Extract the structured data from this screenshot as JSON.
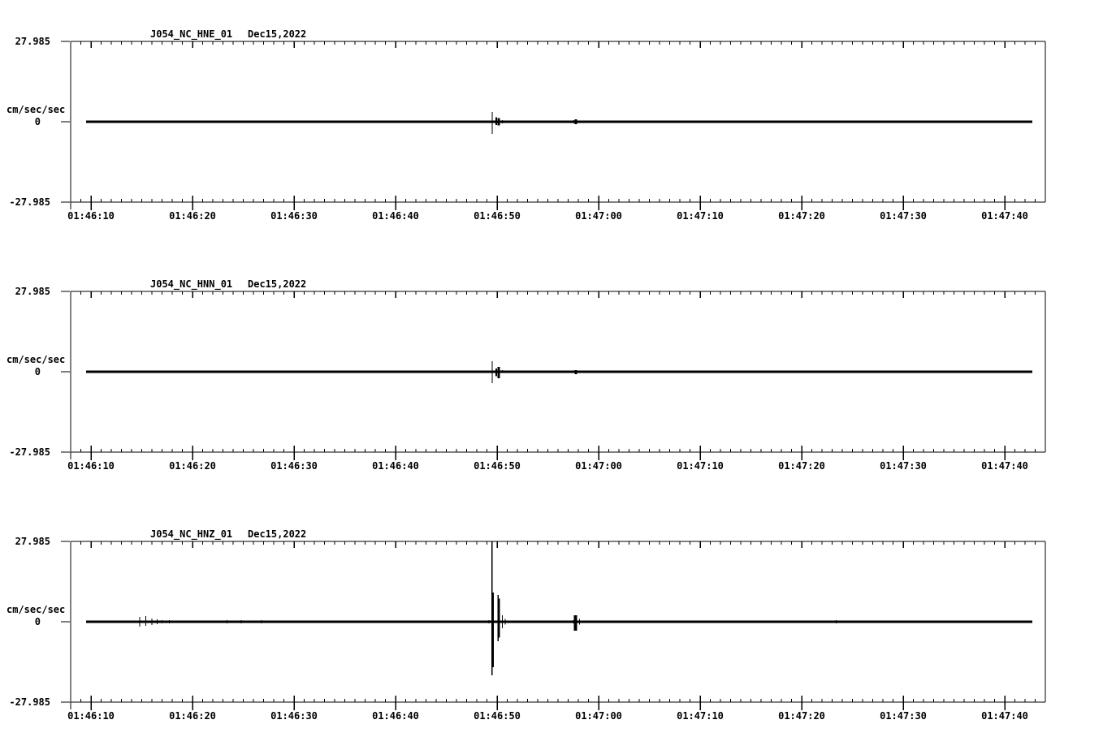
{
  "figure": {
    "background": "#ffffff",
    "ink": "#000000",
    "kind": "three-component strong-motion seismogram"
  },
  "chart_data": [
    {
      "type": "line",
      "title": "J054_NC_HNE_01",
      "date_label": "Dec15,2022",
      "ylabel": "cm/sec/sec",
      "ytick_labels": [
        "27.985",
        "0",
        "-27.985"
      ],
      "ylim": [
        -27.985,
        27.985
      ],
      "baseline_value": 0,
      "xtick_labels": [
        "01:46:10",
        "01:46:20",
        "01:46:30",
        "01:46:40",
        "01:46:50",
        "01:47:00",
        "01:47:10",
        "01:47:20",
        "01:47:30",
        "01:47:40"
      ],
      "x_window": {
        "start": "01:46:08",
        "end": "01:47:44",
        "major_tick_sec": 10,
        "minor_tick_sec": 1
      },
      "trace_span_sec": [
        -0.5,
        92.7
      ],
      "spike_fields": [
        "t_sec_after_01:46:10",
        "up_cm_s2",
        "down_cm_s2",
        "stroke_px"
      ],
      "spikes": [
        [
          4.8,
          0.4,
          0.4,
          1
        ],
        [
          5.4,
          0.4,
          0.4,
          1
        ],
        [
          35.8,
          0.3,
          0.3,
          1
        ],
        [
          39.5,
          3.4,
          4.2,
          1
        ],
        [
          39.9,
          1.6,
          1.2,
          2
        ],
        [
          40.15,
          1.3,
          1.3,
          3
        ],
        [
          40.5,
          0.5,
          0.5,
          1
        ],
        [
          46.3,
          0.3,
          0.3,
          1
        ],
        [
          47.55,
          0.5,
          0.5,
          1
        ],
        [
          47.75,
          0.8,
          0.9,
          3
        ],
        [
          48.1,
          0.3,
          0.3,
          1
        ]
      ]
    },
    {
      "type": "line",
      "title": "J054_NC_HNN_01",
      "date_label": "Dec15,2022",
      "ylabel": "cm/sec/sec",
      "ytick_labels": [
        "27.985",
        "0",
        "-27.985"
      ],
      "ylim": [
        -27.985,
        27.985
      ],
      "baseline_value": 0,
      "xtick_labels": [
        "01:46:10",
        "01:46:20",
        "01:46:30",
        "01:46:40",
        "01:46:50",
        "01:47:00",
        "01:47:10",
        "01:47:20",
        "01:47:30",
        "01:47:40"
      ],
      "x_window": {
        "start": "01:46:08",
        "end": "01:47:44",
        "major_tick_sec": 10,
        "minor_tick_sec": 1
      },
      "trace_span_sec": [
        -0.5,
        92.7
      ],
      "spike_fields": [
        "t_sec_after_01:46:10",
        "up_cm_s2",
        "down_cm_s2",
        "stroke_px"
      ],
      "spikes": [
        [
          4.8,
          0.3,
          0.3,
          1
        ],
        [
          35.8,
          0.3,
          0.3,
          1
        ],
        [
          39.5,
          3.7,
          4.0,
          1
        ],
        [
          39.9,
          1.2,
          1.5,
          2
        ],
        [
          40.15,
          1.7,
          2.3,
          3
        ],
        [
          40.5,
          0.6,
          0.3,
          1
        ],
        [
          47.55,
          0.4,
          0.4,
          1
        ],
        [
          47.75,
          0.6,
          0.85,
          3
        ],
        [
          66.5,
          0.3,
          0.3,
          1
        ],
        [
          86.2,
          0.3,
          0.3,
          1
        ]
      ]
    },
    {
      "type": "line",
      "title": "J054_NC_HNZ_01",
      "date_label": "Dec15,2022",
      "ylabel": "cm/sec/sec",
      "ytick_labels": [
        "27.985",
        "0",
        "-27.985"
      ],
      "ylim": [
        -27.985,
        27.985
      ],
      "baseline_value": 0,
      "xtick_labels": [
        "01:46:10",
        "01:46:20",
        "01:46:30",
        "01:46:40",
        "01:46:50",
        "01:47:00",
        "01:47:10",
        "01:47:20",
        "01:47:30",
        "01:47:40"
      ],
      "x_window": {
        "start": "01:46:08",
        "end": "01:47:44",
        "major_tick_sec": 10,
        "minor_tick_sec": 1
      },
      "trace_span_sec": [
        -0.5,
        92.7
      ],
      "spike_fields": [
        "t_sec_after_01:46:10",
        "up_cm_s2",
        "down_cm_s2",
        "stroke_px"
      ],
      "spikes": [
        [
          4.8,
          1.7,
          1.7,
          1
        ],
        [
          5.4,
          2.0,
          1.4,
          1
        ],
        [
          6.0,
          1.1,
          1.1,
          1
        ],
        [
          6.5,
          0.8,
          0.8,
          1
        ],
        [
          7.0,
          0.6,
          0.6,
          1
        ],
        [
          7.7,
          0.6,
          0.6,
          1
        ],
        [
          13.4,
          0.6,
          0.6,
          1
        ],
        [
          14.8,
          0.6,
          0.6,
          1
        ],
        [
          16.8,
          0.6,
          0.6,
          1
        ],
        [
          20.1,
          0.4,
          0.4,
          1
        ],
        [
          27.7,
          0.4,
          0.4,
          1
        ],
        [
          31.0,
          0.3,
          0.3,
          1
        ],
        [
          35.8,
          0.4,
          0.4,
          1
        ],
        [
          38.9,
          0.4,
          0.4,
          1
        ],
        [
          39.2,
          0.6,
          0.6,
          1
        ],
        [
          39.5,
          28.0,
          18.7,
          1.5
        ],
        [
          39.55,
          10.2,
          15.8,
          3
        ],
        [
          40.1,
          9.3,
          6.8,
          1.5
        ],
        [
          40.15,
          8.0,
          5.5,
          3
        ],
        [
          40.5,
          2.3,
          2.3,
          1
        ],
        [
          40.8,
          1.0,
          1.0,
          1
        ],
        [
          47.5,
          0.6,
          0.6,
          1
        ],
        [
          47.7,
          2.3,
          3.1,
          4
        ],
        [
          48.1,
          1.0,
          1.0,
          1
        ],
        [
          57.0,
          0.3,
          0.3,
          1
        ],
        [
          73.4,
          0.6,
          0.6,
          1
        ]
      ]
    }
  ]
}
